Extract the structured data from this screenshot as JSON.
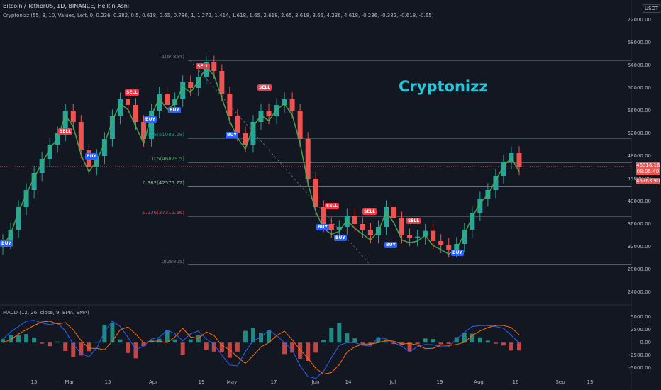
{
  "header": {
    "title": "Bitcoin / TetherUS, 1D, BINANCE, Heikin Ashi",
    "indicator": "Cryptonizz  (55, 3, 10, Values, Left, 0, 0.236, 0.382, 0.5, 0.618, 0.65, 0.786, 1, 1.272, 1.414, 1.618, 1.65, 2.618, 2.65, 3.618, 3.65, 4.236, 4.618, -0.236, -0.382, -0.618, -0.65)",
    "currency": "USDT"
  },
  "watermark": "Cryptonizz",
  "macd_label": "MACD (12, 26, close, 9, EMA, EMA)",
  "price_ticks": [
    "72000.00",
    "68000.00",
    "64000.00",
    "60000.00",
    "56000.00",
    "52000.00",
    "48000.00",
    "44000.00",
    "40000.00",
    "36000.00",
    "32000.00",
    "28000.00",
    "24000.00"
  ],
  "macd_ticks": [
    "5000.00",
    "2500.00",
    "0.00",
    "-2500.00",
    "-5000.00"
  ],
  "time_ticks": [
    "15",
    "Mar",
    "15",
    "Apr",
    "19",
    "May",
    "17",
    "Jun",
    "14",
    "Jul",
    "19",
    "Aug",
    "16",
    "Sep",
    "13"
  ],
  "fib_levels": [
    {
      "label": "1(64854)",
      "color": "#787b86"
    },
    {
      "label": "0.618(51083.28)",
      "color": "#089981"
    },
    {
      "label": "0.5(46829.5)",
      "color": "#4caf50"
    },
    {
      "label": "0.382(42575.72)",
      "color": "#81c784"
    },
    {
      "label": "0.236(37312.56)",
      "color": "#f23645"
    },
    {
      "label": "0(28805)",
      "color": "#787b86"
    }
  ],
  "price_tags": {
    "current": "46016.16",
    "countdown": "08:05:40",
    "low": "45763.90"
  },
  "signals": [
    "SELL",
    "SELL",
    "SELL",
    "SELL",
    "SELL",
    "SELL",
    "SELL",
    "BUY",
    "BUY",
    "BUY",
    "BUY",
    "BUY",
    "BUY",
    "BUY",
    "BUY",
    "BUY"
  ],
  "colors": {
    "background": "#131722",
    "up": "#26a69a",
    "down": "#ef5350",
    "macd": "#2962ff",
    "signal": "#ff6d00",
    "watermark": "#26c6da"
  },
  "chart_data": {
    "type": "candlestick",
    "symbol": "BTCUSDT",
    "y_range": [
      22000,
      74000
    ],
    "fib_prices": [
      64854,
      51083.28,
      46829.5,
      42575.72,
      37312.56,
      28805
    ],
    "closes": [
      33000,
      35000,
      39000,
      42000,
      45000,
      47500,
      50000,
      52000,
      56000,
      54000,
      49000,
      46000,
      48000,
      51000,
      55000,
      58000,
      57000,
      54000,
      51000,
      56000,
      59000,
      57000,
      58000,
      61000,
      60000,
      62000,
      64500,
      63000,
      59000,
      55000,
      52000,
      50000,
      54000,
      56000,
      55000,
      57000,
      58000,
      56000,
      51000,
      44000,
      39000,
      36000,
      35000,
      35500,
      37500,
      36000,
      35000,
      34000,
      35500,
      39000,
      37000,
      34000,
      33500,
      33800,
      34800,
      33000,
      32300,
      31500,
      32500,
      35000,
      38000,
      40500,
      42000,
      44500,
      47000,
      48500,
      46000
    ]
  }
}
